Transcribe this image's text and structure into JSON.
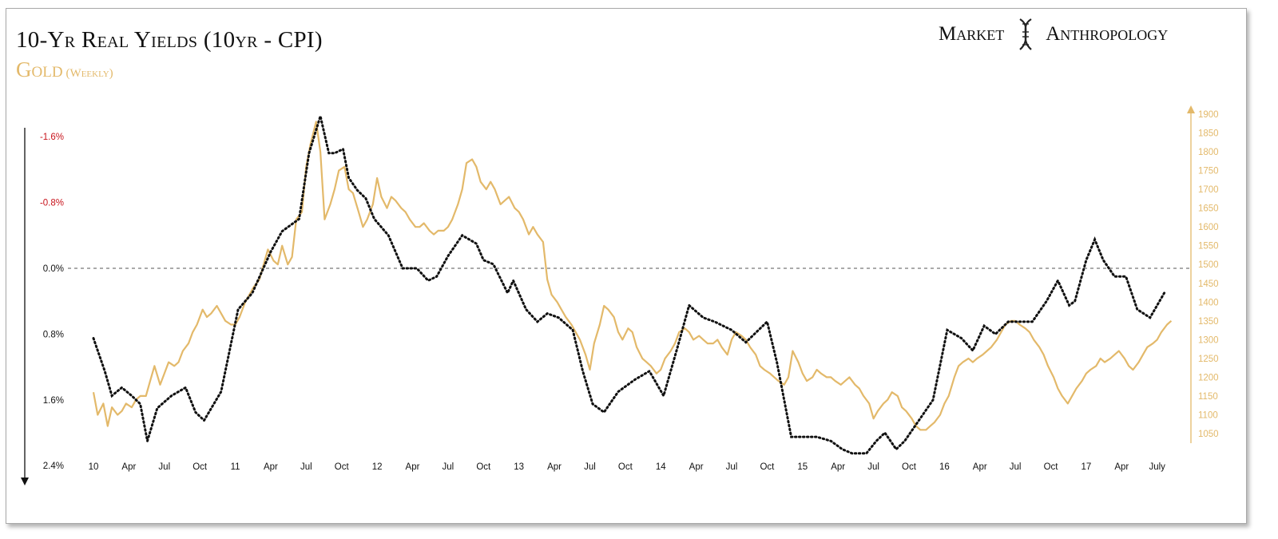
{
  "header": {
    "title": "10-Yr Real Yields (10yr - CPI)",
    "subtitle_main": "Gold",
    "subtitle_note": "(Weekly)",
    "brand_left": "Market",
    "brand_right": "Anthropology",
    "logo_icon": "dna-helix-icon"
  },
  "colors": {
    "gold": "#e3b96a",
    "yields": "#111111",
    "negative_label": "#c8141c",
    "zero_line": "#555555"
  },
  "chart_data": {
    "type": "line",
    "title": "10-Yr Real Yields (10yr - CPI)",
    "subtitle": "Gold (Weekly)",
    "x_range": [
      2010.0,
      2017.62
    ],
    "x_ticks": [
      {
        "label": "10",
        "t": 2010.0
      },
      {
        "label": "Apr",
        "t": 2010.25
      },
      {
        "label": "Jul",
        "t": 2010.5
      },
      {
        "label": "Oct",
        "t": 2010.75
      },
      {
        "label": "11",
        "t": 2011.0
      },
      {
        "label": "Apr",
        "t": 2011.25
      },
      {
        "label": "Jul",
        "t": 2011.5
      },
      {
        "label": "Oct",
        "t": 2011.75
      },
      {
        "label": "12",
        "t": 2012.0
      },
      {
        "label": "Apr",
        "t": 2012.25
      },
      {
        "label": "Jul",
        "t": 2012.5
      },
      {
        "label": "Oct",
        "t": 2012.75
      },
      {
        "label": "13",
        "t": 2013.0
      },
      {
        "label": "Apr",
        "t": 2013.25
      },
      {
        "label": "Jul",
        "t": 2013.5
      },
      {
        "label": "Oct",
        "t": 2013.75
      },
      {
        "label": "14",
        "t": 2014.0
      },
      {
        "label": "Apr",
        "t": 2014.25
      },
      {
        "label": "Jul",
        "t": 2014.5
      },
      {
        "label": "Oct",
        "t": 2014.75
      },
      {
        "label": "15",
        "t": 2015.0
      },
      {
        "label": "Apr",
        "t": 2015.25
      },
      {
        "label": "Jul",
        "t": 2015.5
      },
      {
        "label": "Oct",
        "t": 2015.75
      },
      {
        "label": "16",
        "t": 2016.0
      },
      {
        "label": "Apr",
        "t": 2016.25
      },
      {
        "label": "Jul",
        "t": 2016.5
      },
      {
        "label": "Oct",
        "t": 2016.75
      },
      {
        "label": "17",
        "t": 2017.0
      },
      {
        "label": "Apr",
        "t": 2017.25
      },
      {
        "label": "July",
        "t": 2017.5
      }
    ],
    "left_axis": {
      "inverted": true,
      "range": [
        -2.0,
        2.4
      ],
      "ticks": [
        {
          "label": "-1.6%",
          "v": -1.6,
          "negative": true
        },
        {
          "label": "-0.8%",
          "v": -0.8,
          "negative": true
        },
        {
          "label": "0.0%",
          "v": 0.0,
          "negative": false
        },
        {
          "label": "0.8%",
          "v": 0.8,
          "negative": false
        },
        {
          "label": "1.6%",
          "v": 1.6,
          "negative": false
        },
        {
          "label": "2.4%",
          "v": 2.4,
          "negative": false
        }
      ],
      "zero_line": 0.0
    },
    "right_axis": {
      "range": [
        1010,
        1935
      ],
      "ticks": [
        1050,
        1100,
        1150,
        1200,
        1250,
        1300,
        1350,
        1400,
        1450,
        1500,
        1550,
        1600,
        1650,
        1700,
        1750,
        1800,
        1850,
        1900
      ]
    },
    "grid": false,
    "legend": "none",
    "series": [
      {
        "key": "real_yield",
        "axis": "left",
        "style": "dotted",
        "t": [
          2010.0,
          2010.08,
          2010.13,
          2010.2,
          2010.27,
          2010.33,
          2010.38,
          2010.45,
          2010.55,
          2010.65,
          2010.72,
          2010.78,
          2010.9,
          2011.02,
          2011.12,
          2011.25,
          2011.33,
          2011.45,
          2011.52,
          2011.6,
          2011.66,
          2011.7,
          2011.76,
          2011.8,
          2011.86,
          2011.92,
          2011.98,
          2012.08,
          2012.18,
          2012.28,
          2012.36,
          2012.42,
          2012.5,
          2012.6,
          2012.7,
          2012.75,
          2012.82,
          2012.92,
          2012.96,
          2013.05,
          2013.13,
          2013.2,
          2013.28,
          2013.38,
          2013.45,
          2013.52,
          2013.6,
          2013.7,
          2013.82,
          2013.92,
          2014.02,
          2014.12,
          2014.2,
          2014.3,
          2014.38,
          2014.5,
          2014.6,
          2014.66,
          2014.75,
          2014.82,
          2014.92,
          2015.02,
          2015.1,
          2015.2,
          2015.28,
          2015.35,
          2015.45,
          2015.52,
          2015.58,
          2015.66,
          2015.72,
          2015.82,
          2015.92,
          2016.02,
          2016.12,
          2016.2,
          2016.28,
          2016.36,
          2016.45,
          2016.55,
          2016.62,
          2016.72,
          2016.8,
          2016.88,
          2016.92,
          2017.0,
          2017.06,
          2017.12,
          2017.2,
          2017.28,
          2017.36,
          2017.45,
          2017.55
        ],
        "v": [
          0.85,
          1.25,
          1.55,
          1.45,
          1.55,
          1.65,
          2.1,
          1.7,
          1.55,
          1.45,
          1.75,
          1.85,
          1.5,
          0.5,
          0.3,
          -0.2,
          -0.45,
          -0.6,
          -1.4,
          -1.85,
          -1.4,
          -1.4,
          -1.45,
          -1.1,
          -0.95,
          -0.85,
          -0.6,
          -0.4,
          0.0,
          0.0,
          0.15,
          0.1,
          -0.15,
          -0.4,
          -0.3,
          -0.1,
          -0.05,
          0.3,
          0.15,
          0.5,
          0.65,
          0.55,
          0.6,
          0.75,
          1.25,
          1.65,
          1.75,
          1.5,
          1.35,
          1.25,
          1.55,
          0.95,
          0.45,
          0.6,
          0.65,
          0.75,
          0.9,
          0.8,
          0.65,
          1.15,
          2.05,
          2.05,
          2.05,
          2.1,
          2.2,
          2.25,
          2.25,
          2.1,
          2.0,
          2.2,
          2.1,
          1.85,
          1.6,
          0.75,
          0.85,
          1.0,
          0.7,
          0.8,
          0.65,
          0.65,
          0.65,
          0.4,
          0.15,
          0.45,
          0.4,
          -0.1,
          -0.35,
          -0.1,
          0.1,
          0.1,
          0.5,
          0.6,
          0.3
        ]
      },
      {
        "key": "gold",
        "axis": "right",
        "style": "solid",
        "t": [
          2010.0,
          2010.03,
          2010.07,
          2010.1,
          2010.13,
          2010.17,
          2010.2,
          2010.23,
          2010.27,
          2010.3,
          2010.33,
          2010.37,
          2010.4,
          2010.43,
          2010.47,
          2010.5,
          2010.53,
          2010.57,
          2010.6,
          2010.63,
          2010.67,
          2010.7,
          2010.73,
          2010.77,
          2010.8,
          2010.83,
          2010.87,
          2010.9,
          2010.93,
          2010.97,
          2011.0,
          2011.03,
          2011.07,
          2011.1,
          2011.13,
          2011.17,
          2011.2,
          2011.23,
          2011.27,
          2011.3,
          2011.33,
          2011.37,
          2011.4,
          2011.43,
          2011.47,
          2011.5,
          2011.53,
          2011.57,
          2011.6,
          2011.63,
          2011.67,
          2011.7,
          2011.73,
          2011.77,
          2011.8,
          2011.83,
          2011.87,
          2011.9,
          2011.93,
          2011.97,
          2012.0,
          2012.03,
          2012.07,
          2012.1,
          2012.13,
          2012.17,
          2012.2,
          2012.23,
          2012.27,
          2012.3,
          2012.33,
          2012.37,
          2012.4,
          2012.43,
          2012.47,
          2012.5,
          2012.53,
          2012.57,
          2012.6,
          2012.63,
          2012.67,
          2012.7,
          2012.73,
          2012.77,
          2012.8,
          2012.83,
          2012.87,
          2012.9,
          2012.93,
          2012.97,
          2013.0,
          2013.03,
          2013.07,
          2013.1,
          2013.13,
          2013.17,
          2013.2,
          2013.23,
          2013.27,
          2013.3,
          2013.33,
          2013.37,
          2013.4,
          2013.43,
          2013.47,
          2013.5,
          2013.53,
          2013.57,
          2013.6,
          2013.63,
          2013.67,
          2013.7,
          2013.73,
          2013.77,
          2013.8,
          2013.83,
          2013.87,
          2013.9,
          2013.93,
          2013.97,
          2014.0,
          2014.03,
          2014.07,
          2014.1,
          2014.13,
          2014.17,
          2014.2,
          2014.23,
          2014.27,
          2014.3,
          2014.33,
          2014.37,
          2014.4,
          2014.43,
          2014.47,
          2014.5,
          2014.53,
          2014.57,
          2014.6,
          2014.63,
          2014.67,
          2014.7,
          2014.73,
          2014.77,
          2014.8,
          2014.83,
          2014.87,
          2014.9,
          2014.93,
          2014.97,
          2015.0,
          2015.03,
          2015.07,
          2015.1,
          2015.13,
          2015.17,
          2015.2,
          2015.23,
          2015.27,
          2015.3,
          2015.33,
          2015.37,
          2015.4,
          2015.43,
          2015.47,
          2015.5,
          2015.53,
          2015.57,
          2015.6,
          2015.63,
          2015.67,
          2015.7,
          2015.73,
          2015.77,
          2015.8,
          2015.83,
          2015.87,
          2015.9,
          2015.93,
          2015.97,
          2016.0,
          2016.03,
          2016.07,
          2016.1,
          2016.13,
          2016.17,
          2016.2,
          2016.23,
          2016.27,
          2016.3,
          2016.33,
          2016.37,
          2016.4,
          2016.43,
          2016.47,
          2016.5,
          2016.53,
          2016.57,
          2016.6,
          2016.63,
          2016.67,
          2016.7,
          2016.73,
          2016.77,
          2016.8,
          2016.83,
          2016.87,
          2016.9,
          2016.93,
          2016.97,
          2017.0,
          2017.03,
          2017.07,
          2017.1,
          2017.13,
          2017.17,
          2017.2,
          2017.23,
          2017.27,
          2017.3,
          2017.33,
          2017.37,
          2017.4,
          2017.43,
          2017.47,
          2017.5,
          2017.53,
          2017.57,
          2017.6
        ],
        "v": [
          1160,
          1100,
          1130,
          1070,
          1120,
          1100,
          1110,
          1130,
          1120,
          1140,
          1150,
          1150,
          1190,
          1230,
          1180,
          1210,
          1240,
          1230,
          1240,
          1270,
          1290,
          1320,
          1340,
          1380,
          1360,
          1370,
          1390,
          1370,
          1350,
          1340,
          1340,
          1360,
          1400,
          1420,
          1440,
          1460,
          1500,
          1540,
          1510,
          1500,
          1550,
          1500,
          1520,
          1620,
          1640,
          1760,
          1820,
          1880,
          1800,
          1620,
          1660,
          1700,
          1750,
          1760,
          1700,
          1690,
          1640,
          1600,
          1620,
          1660,
          1730,
          1680,
          1650,
          1680,
          1670,
          1650,
          1640,
          1620,
          1600,
          1600,
          1610,
          1590,
          1580,
          1590,
          1590,
          1600,
          1620,
          1660,
          1700,
          1770,
          1780,
          1760,
          1720,
          1700,
          1720,
          1700,
          1660,
          1670,
          1680,
          1650,
          1640,
          1620,
          1580,
          1600,
          1580,
          1560,
          1460,
          1420,
          1400,
          1380,
          1360,
          1340,
          1320,
          1300,
          1260,
          1220,
          1290,
          1340,
          1390,
          1380,
          1360,
          1320,
          1300,
          1330,
          1320,
          1280,
          1250,
          1240,
          1230,
          1210,
          1220,
          1250,
          1270,
          1290,
          1320,
          1330,
          1320,
          1300,
          1310,
          1300,
          1290,
          1290,
          1300,
          1280,
          1260,
          1300,
          1320,
          1310,
          1300,
          1280,
          1260,
          1230,
          1220,
          1210,
          1200,
          1190,
          1180,
          1200,
          1270,
          1240,
          1210,
          1190,
          1200,
          1220,
          1210,
          1200,
          1200,
          1190,
          1180,
          1190,
          1200,
          1180,
          1170,
          1150,
          1130,
          1090,
          1110,
          1130,
          1140,
          1160,
          1150,
          1120,
          1110,
          1090,
          1070,
          1060,
          1060,
          1070,
          1080,
          1100,
          1130,
          1150,
          1200,
          1230,
          1240,
          1250,
          1240,
          1250,
          1260,
          1270,
          1280,
          1300,
          1320,
          1340,
          1350,
          1350,
          1340,
          1330,
          1320,
          1300,
          1280,
          1260,
          1230,
          1200,
          1170,
          1150,
          1130,
          1150,
          1170,
          1190,
          1210,
          1220,
          1230,
          1250,
          1240,
          1250,
          1260,
          1270,
          1250,
          1230,
          1220,
          1240,
          1260,
          1280,
          1290,
          1300,
          1320,
          1340,
          1350
        ]
      }
    ]
  }
}
